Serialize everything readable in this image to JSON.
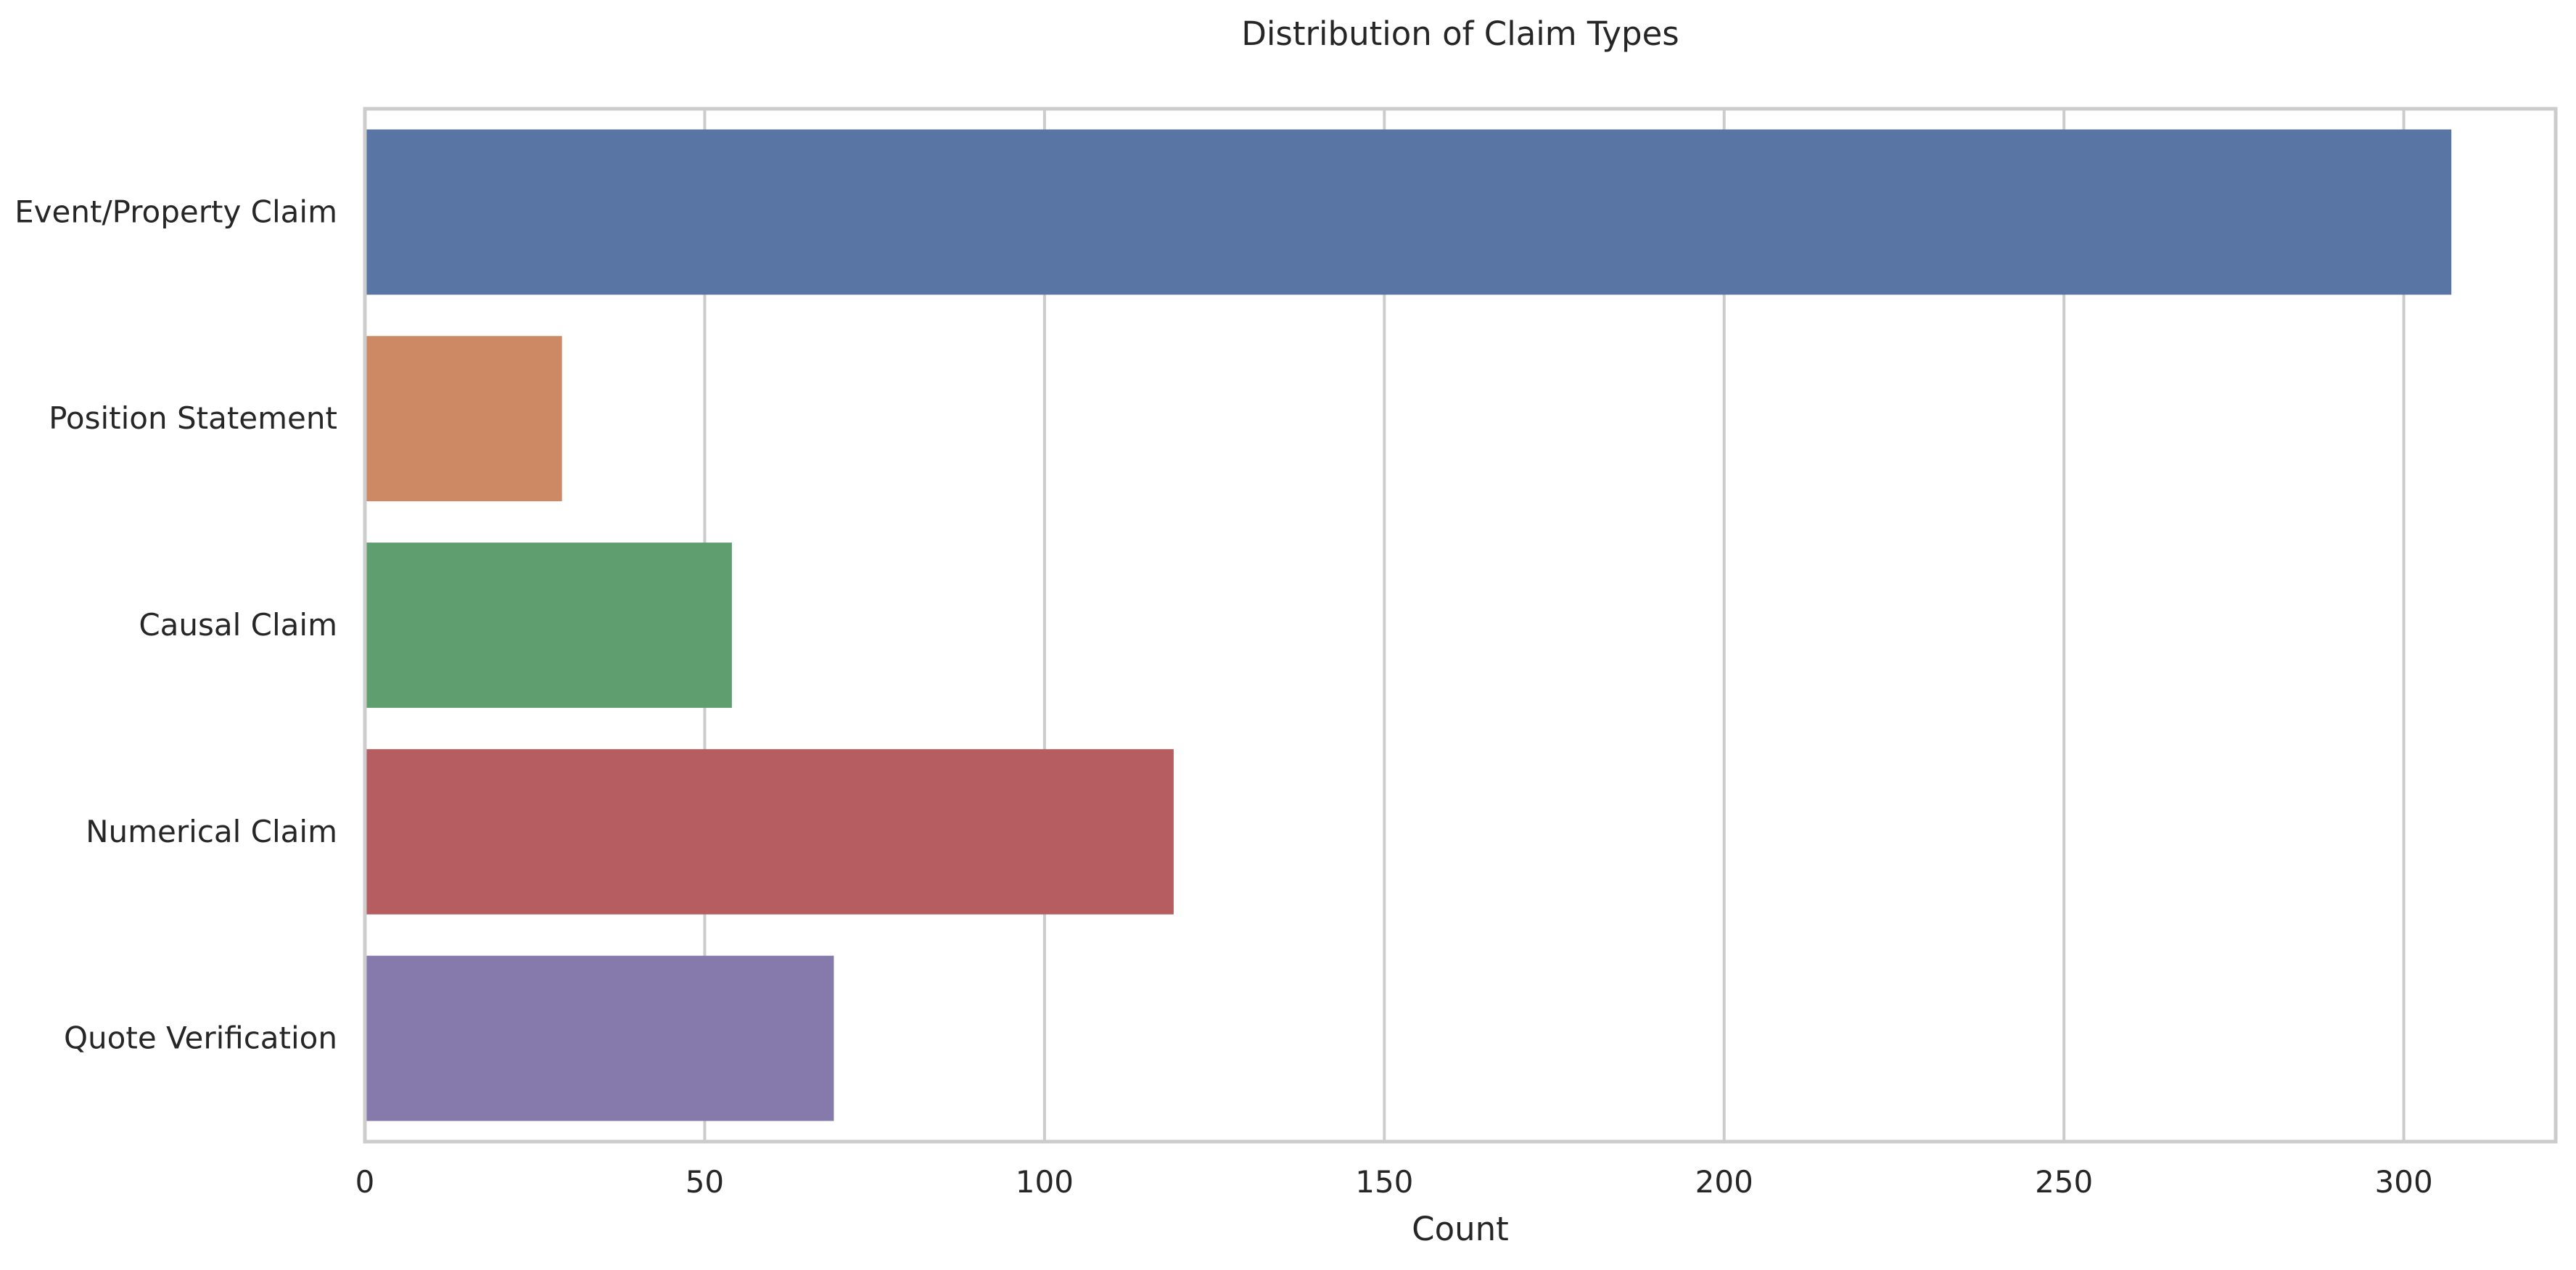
{
  "chart_data": {
    "type": "bar",
    "orientation": "horizontal",
    "title": "Distribution of Claim Types",
    "xlabel": "Count",
    "ylabel": "",
    "categories": [
      "Event/Property Claim",
      "Position Statement",
      "Causal Claim",
      "Numerical Claim",
      "Quote Verification"
    ],
    "values": [
      307,
      29,
      54,
      119,
      69
    ],
    "colors": [
      "#5975a4",
      "#cc8963",
      "#5f9e6e",
      "#b55d60",
      "#857aab"
    ],
    "xlim": [
      0,
      322.35
    ],
    "xticks": [
      0,
      50,
      100,
      150,
      200,
      250,
      300
    ],
    "xtick_labels": [
      "0",
      "50",
      "100",
      "150",
      "200",
      "250",
      "300"
    ],
    "grid": "vertical",
    "legend": "none"
  }
}
